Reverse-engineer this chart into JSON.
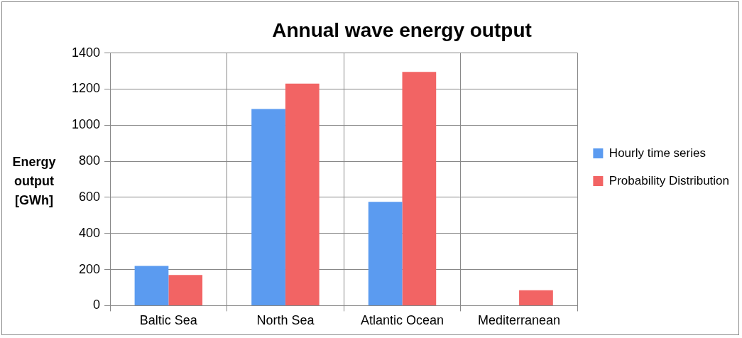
{
  "chart_data": {
    "type": "bar",
    "title": "Annual wave energy output",
    "ylabel": "Energy output [GWh]",
    "categories": [
      "Baltic Sea",
      "North Sea",
      "Atlantic Ocean",
      "Mediterranean"
    ],
    "series": [
      {
        "name": "Hourly time series",
        "color": "#5b9bf0",
        "values": [
          220,
          1090,
          575,
          null
        ]
      },
      {
        "name": "Probability Distribution",
        "color": "#f26464",
        "values": [
          170,
          1230,
          1295,
          85
        ]
      }
    ],
    "ylim": [
      0,
      1400
    ],
    "yticks": [
      0,
      200,
      400,
      600,
      800,
      1000,
      1200,
      1400
    ],
    "grid": true,
    "legend": "right"
  }
}
